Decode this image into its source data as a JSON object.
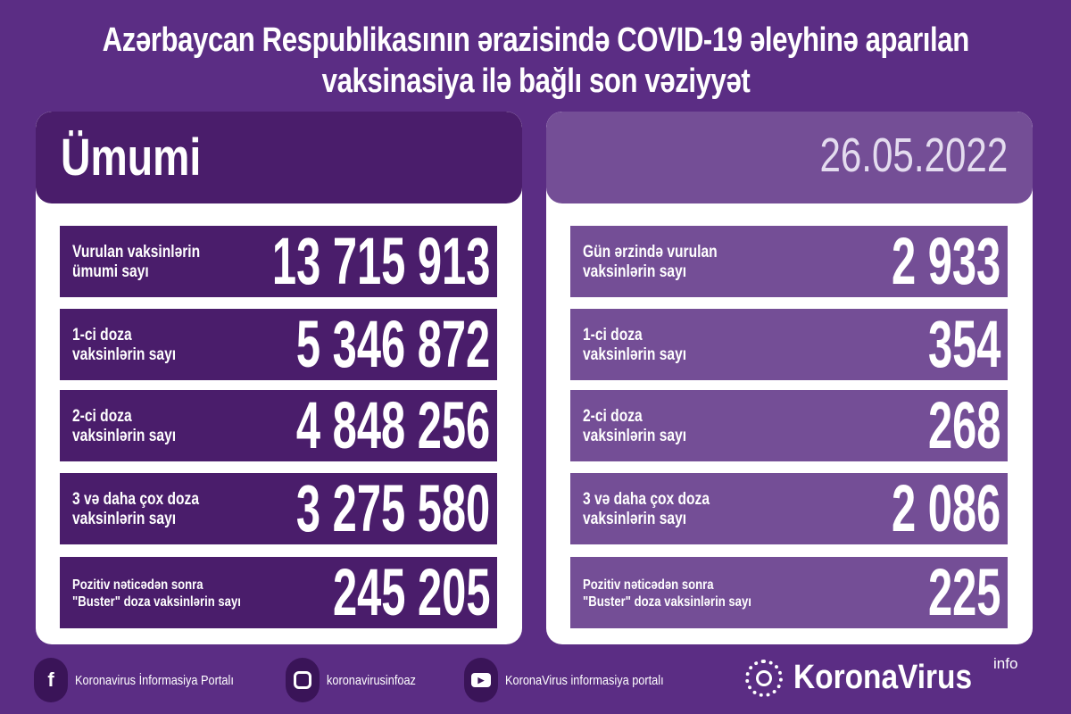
{
  "title": {
    "line1": "Azərbaycan Respublikasının ərazisində COVID-19 əleyhinə aparılan",
    "line2": "vaksinasiya ilə bağlı son vəziyyət"
  },
  "colors": {
    "background": "#5b2d84",
    "left_rows": "#4a1d6b",
    "right_rows": "#744e96"
  },
  "left": {
    "header": "Ümumi",
    "rows": [
      {
        "label1": "Vurulan vaksinlərin",
        "label2": "ümumi sayı",
        "value": "13 715 913"
      },
      {
        "label1": "1-ci doza",
        "label2": "vaksinlərin sayı",
        "value": "5 346 872"
      },
      {
        "label1": "2-ci doza",
        "label2": "vaksinlərin sayı",
        "value": "4 848 256"
      },
      {
        "label1": "3 və daha çox doza",
        "label2": "vaksinlərin sayı",
        "value": "3 275 580"
      },
      {
        "label1": "Pozitiv nəticədən sonra",
        "label2": "\"Buster\" doza vaksinlərin sayı",
        "value": "245 205"
      }
    ]
  },
  "right": {
    "header": "26.05.2022",
    "rows": [
      {
        "label1": "Gün ərzində vurulan",
        "label2": "vaksinlərin sayı",
        "value": "2 933"
      },
      {
        "label1": "1-ci doza",
        "label2": "vaksinlərin sayı",
        "value": "354"
      },
      {
        "label1": "2-ci doza",
        "label2": "vaksinlərin sayı",
        "value": "268"
      },
      {
        "label1": "3 və daha çox doza",
        "label2": "vaksinlərin sayı",
        "value": "2 086"
      },
      {
        "label1": "Pozitiv nəticədən sonra",
        "label2": "\"Buster\" doza vaksinlərin sayı",
        "value": "225"
      }
    ]
  },
  "footer": {
    "facebook": {
      "icon": "facebook-icon",
      "label": "Koronavirus İnformasiya Portalı"
    },
    "instagram": {
      "icon": "instagram-icon",
      "label": "koronavirusinfoaz"
    },
    "youtube": {
      "icon": "youtube-icon",
      "label": "KoronaVirus informasiya portalı"
    },
    "logo": {
      "name": "KoronaVirus",
      "sup": "info"
    }
  }
}
